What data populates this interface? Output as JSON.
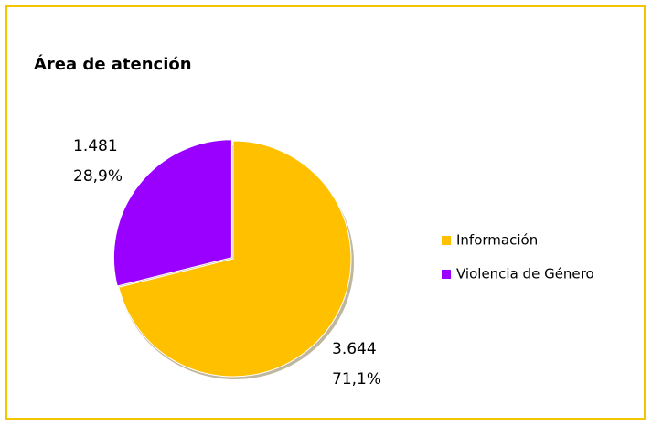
{
  "chart_data": {
    "type": "pie",
    "title": "Área de atención",
    "categories": [
      "Información",
      "Violencia de Género"
    ],
    "values": [
      3644,
      1481
    ],
    "value_labels": [
      "3.644",
      "1.481"
    ],
    "percents": [
      71.1,
      28.9
    ],
    "percent_labels": [
      "71,1%",
      "28,9%"
    ],
    "colors": [
      "#ffc000",
      "#9900ff"
    ],
    "legend": "right"
  }
}
